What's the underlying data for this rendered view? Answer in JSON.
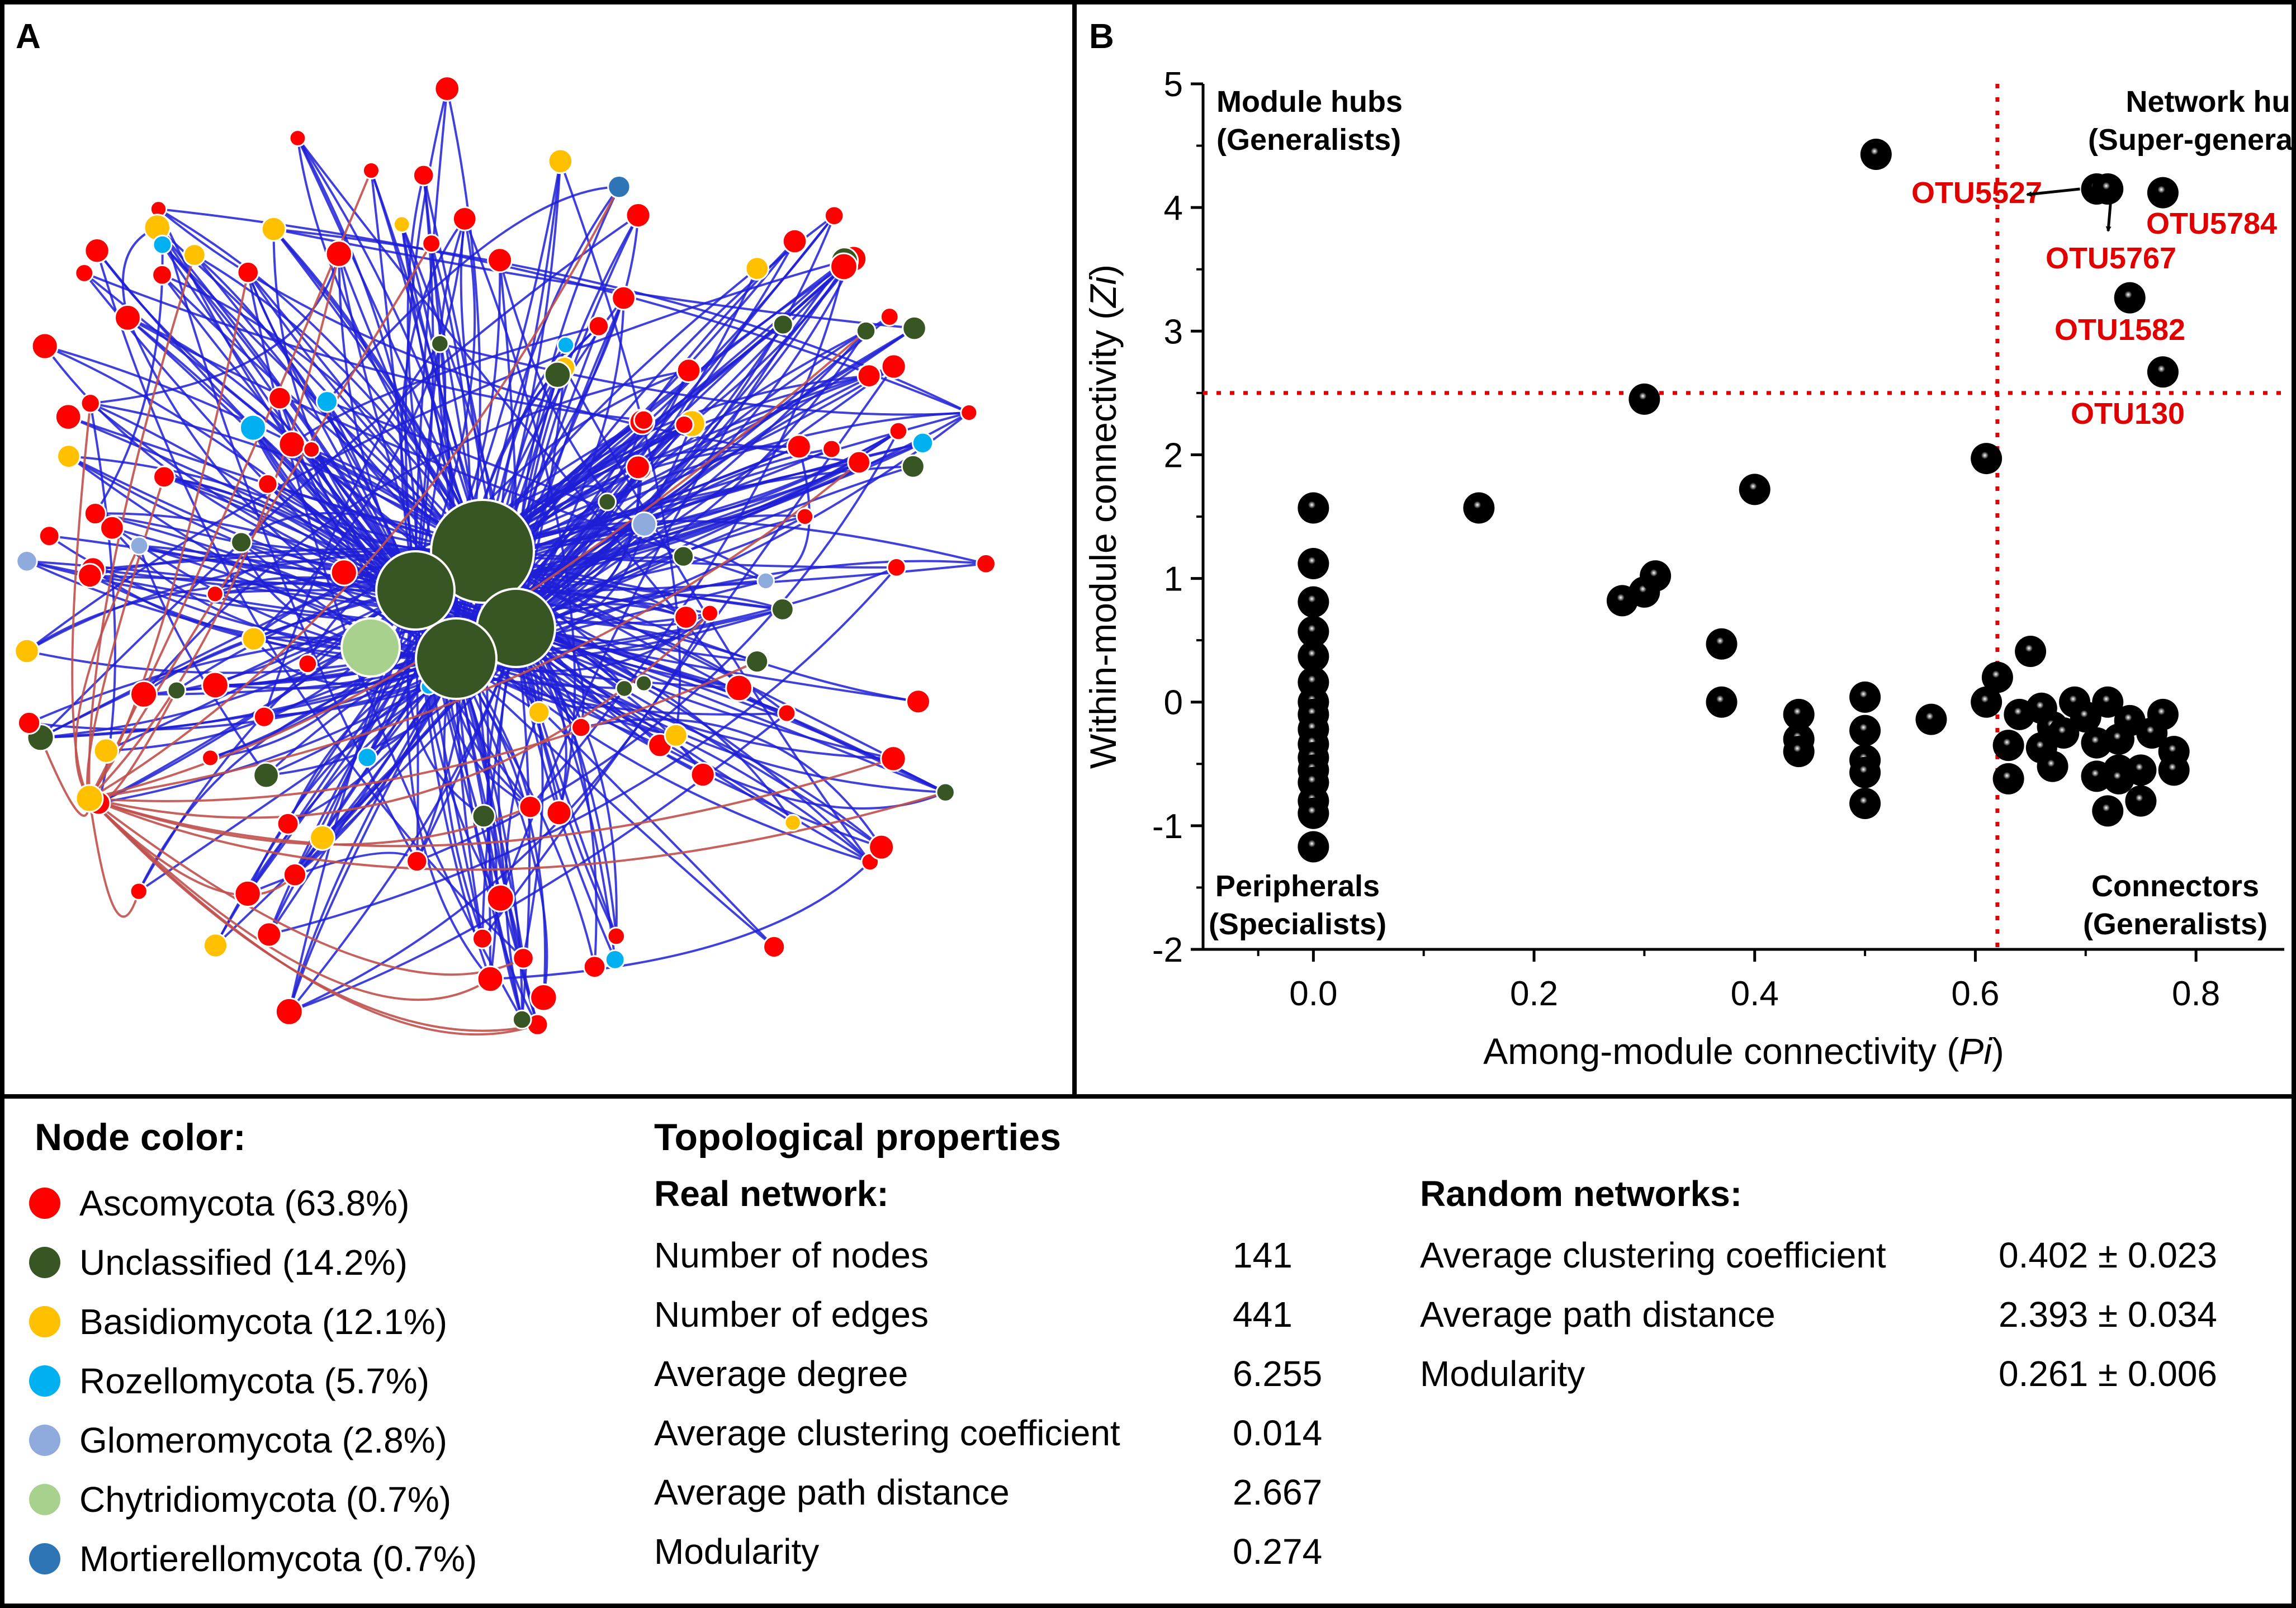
{
  "panels": {
    "a_letter": "A",
    "b_letter": "B"
  },
  "colors": {
    "Ascomycota": "#ff0000",
    "Unclassified": "#375623",
    "Basidiomycota": "#ffc000",
    "Rozellomycota": "#00b0f0",
    "Glomeromycota": "#8faadc",
    "Chytridiomycota": "#a9d18e",
    "Mortierellomycota": "#2e75b6",
    "edge_positive": "#1f1fd6",
    "edge_negative": "#c0504d",
    "threshold_line": "#e00000",
    "otu_label": "#e00000"
  },
  "legend": {
    "title": "Node color:",
    "items": [
      {
        "label": "Ascomycota (63.8%)",
        "color": "#ff0000"
      },
      {
        "label": "Unclassified (14.2%)",
        "color": "#375623"
      },
      {
        "label": "Basidiomycota (12.1%)",
        "color": "#ffc000"
      },
      {
        "label": "Rozellomycota (5.7%)",
        "color": "#00b0f0"
      },
      {
        "label": "Glomeromycota (2.8%)",
        "color": "#8faadc"
      },
      {
        "label": "Chytridiomycota (0.7%)",
        "color": "#a9d18e"
      },
      {
        "label": "Mortierellomycota (0.7%)",
        "color": "#2e75b6"
      }
    ]
  },
  "topology": {
    "title": "Topological properties",
    "real": {
      "heading": "Real network:",
      "rows": [
        {
          "name": "Number of nodes",
          "value": "141"
        },
        {
          "name": "Number of edges",
          "value": "441"
        },
        {
          "name": "Average degree",
          "value": "6.255"
        },
        {
          "name": "Average clustering coefficient",
          "value": "0.014"
        },
        {
          "name": "Average path distance",
          "value": "2.667"
        },
        {
          "name": "Modularity",
          "value": "0.274"
        }
      ]
    },
    "random": {
      "heading": "Random networks:",
      "rows": [
        {
          "name": "Average clustering coefficient",
          "value": "0.402 ± 0.023"
        },
        {
          "name": "Average path distance",
          "value": "2.393 ± 0.034"
        },
        {
          "name": "Modularity",
          "value": "0.261 ± 0.006"
        }
      ]
    }
  },
  "chart_data": {
    "type": "scatter",
    "xlabel_prefix": "Among-module connectivity (",
    "xlabel_var": "Pi",
    "xlabel_suffix": ")",
    "ylabel_prefix": "Within-module connectivity (",
    "ylabel_var": "Zi",
    "ylabel_suffix": ")",
    "xlim": [
      -0.1,
      0.88
    ],
    "ylim": [
      -2,
      5
    ],
    "xticks": [
      "0.0",
      "0.2",
      "0.4",
      "0.6",
      "0.8"
    ],
    "xtick_values": [
      0,
      0.2,
      0.4,
      0.6,
      0.8
    ],
    "yticks": [
      "-2",
      "-1",
      "0",
      "1",
      "2",
      "3",
      "4",
      "5"
    ],
    "ytick_values": [
      -2,
      -1,
      0,
      1,
      2,
      3,
      4,
      5
    ],
    "thresholds": {
      "pi": 0.62,
      "zi": 2.5
    },
    "quadrants": {
      "module_hubs": [
        "Module hubs",
        "(Generalists)"
      ],
      "network_hubs": [
        "Network hubs",
        "(Super-generalists)"
      ],
      "peripherals": [
        "Peripherals",
        "(Specialists)"
      ],
      "connectors": [
        "Connectors",
        "(Generalists)"
      ]
    },
    "labeled_points": [
      {
        "label": "OTU5527",
        "pi": 0.51,
        "zi": 4.43
      },
      {
        "label": "OTU5784",
        "pi": 0.77,
        "zi": 4.12
      },
      {
        "label": "OTU5767",
        "pi": 0.72,
        "zi": 4.15
      },
      {
        "label": "OTU1582",
        "pi": 0.74,
        "zi": 3.27
      },
      {
        "label": "OTU130",
        "pi": 0.77,
        "zi": 2.67
      }
    ],
    "points": [
      [
        0.0,
        1.57
      ],
      [
        0.0,
        1.12
      ],
      [
        0.0,
        0.81
      ],
      [
        0.0,
        0.57
      ],
      [
        0.0,
        0.37
      ],
      [
        0.0,
        0.16
      ],
      [
        0.0,
        0.0
      ],
      [
        0.0,
        -0.1
      ],
      [
        0.0,
        -0.22
      ],
      [
        0.0,
        -0.34
      ],
      [
        0.0,
        -0.45
      ],
      [
        0.0,
        -0.55
      ],
      [
        0.0,
        -0.65
      ],
      [
        0.0,
        -0.8
      ],
      [
        0.0,
        -0.9
      ],
      [
        0.0,
        -1.17
      ],
      [
        0.15,
        1.57
      ],
      [
        0.3,
        2.45
      ],
      [
        0.28,
        0.82
      ],
      [
        0.3,
        0.89
      ],
      [
        0.31,
        1.02
      ],
      [
        0.4,
        1.72
      ],
      [
        0.37,
        0.47
      ],
      [
        0.37,
        0.0
      ],
      [
        0.44,
        -0.1
      ],
      [
        0.44,
        -0.3
      ],
      [
        0.44,
        -0.4
      ],
      [
        0.5,
        0.04
      ],
      [
        0.5,
        -0.23
      ],
      [
        0.5,
        -0.47
      ],
      [
        0.5,
        -0.57
      ],
      [
        0.5,
        -0.82
      ],
      [
        0.56,
        -0.14
      ],
      [
        0.61,
        1.97
      ],
      [
        0.61,
        0.0
      ],
      [
        0.62,
        0.2
      ],
      [
        0.63,
        -0.35
      ],
      [
        0.63,
        -0.62
      ],
      [
        0.64,
        -0.1
      ],
      [
        0.65,
        0.41
      ],
      [
        0.66,
        -0.05
      ],
      [
        0.67,
        -0.2
      ],
      [
        0.66,
        -0.37
      ],
      [
        0.67,
        -0.52
      ],
      [
        0.68,
        -0.25
      ],
      [
        0.69,
        0.0
      ],
      [
        0.7,
        -0.12
      ],
      [
        0.71,
        -0.33
      ],
      [
        0.71,
        -0.6
      ],
      [
        0.72,
        0.0
      ],
      [
        0.73,
        -0.3
      ],
      [
        0.73,
        -0.55
      ],
      [
        0.74,
        -0.15
      ],
      [
        0.72,
        -0.88
      ],
      [
        0.75,
        -0.8
      ],
      [
        0.76,
        -0.25
      ],
      [
        0.75,
        -0.55
      ],
      [
        0.77,
        -0.1
      ],
      [
        0.78,
        -0.4
      ],
      [
        0.78,
        -0.55
      ],
      [
        0.73,
        -0.62
      ],
      [
        0.51,
        4.43
      ],
      [
        0.71,
        4.15
      ],
      [
        0.72,
        4.15
      ],
      [
        0.77,
        4.12
      ],
      [
        0.74,
        3.27
      ],
      [
        0.77,
        2.67
      ]
    ]
  }
}
